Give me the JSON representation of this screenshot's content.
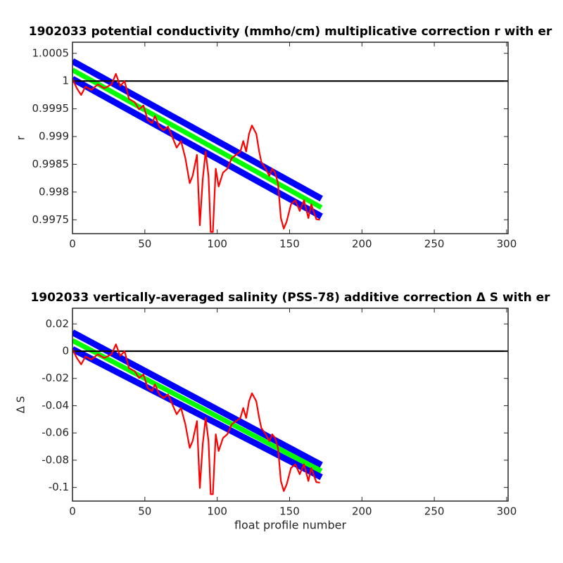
{
  "chart_data": [
    {
      "type": "line",
      "title": "1902033 potential conductivity (mmho/cm) multiplicative correction r with er",
      "ylabel": "r",
      "xlim": [
        0,
        301
      ],
      "xticks": [
        0,
        50,
        100,
        150,
        200,
        250,
        300
      ],
      "ylim": [
        0.99725,
        1.0007
      ],
      "yticks": [
        0.9975,
        0.998,
        0.9985,
        0.999,
        0.9995,
        1,
        1.0005
      ],
      "series": [
        {
          "color": "#0000ff",
          "style": "band",
          "x": [
            0,
            172
          ],
          "values": [
            1.00036,
            0.99788
          ]
        },
        {
          "color": "#0000ff",
          "style": "band",
          "x": [
            0,
            172
          ],
          "values": [
            1.00004,
            0.99756
          ]
        },
        {
          "color": "#00ff00",
          "style": "wide",
          "x": [
            0,
            172
          ],
          "values": [
            1.0002,
            0.99772
          ]
        },
        {
          "color": "#000000",
          "style": "thin",
          "x": [
            0,
            301
          ],
          "values": [
            1,
            1
          ]
        },
        {
          "color": "#ff0000",
          "style": "thin",
          "x": [
            0,
            3,
            6,
            9,
            13,
            17.5,
            22,
            27,
            30,
            33,
            36,
            39,
            43,
            46,
            49,
            52,
            55,
            57,
            60,
            63,
            66,
            69,
            72,
            75,
            78,
            81,
            83,
            86,
            88,
            90,
            92,
            94,
            95.5,
            97,
            99,
            101,
            104,
            107,
            110,
            113,
            116,
            118,
            120,
            122,
            124,
            127,
            129,
            130.5,
            133.5,
            136,
            138,
            140,
            142,
            144,
            146,
            148,
            151,
            154,
            157,
            160,
            163,
            165,
            166.5,
            168.5,
            171
          ],
          "values": [
            1.00004,
            0.99987,
            0.99975,
            0.9999,
            0.99984,
            0.99994,
            0.99987,
            0.99994,
            1.00013,
            0.99991,
            1,
            0.99968,
            0.99962,
            0.99949,
            0.99956,
            0.9993,
            0.99924,
            0.99937,
            0.99918,
            0.99911,
            0.99918,
            0.99899,
            0.9988,
            0.99892,
            0.99861,
            0.99816,
            0.99829,
            0.99867,
            0.9974,
            0.99823,
            0.99873,
            0.99829,
            0.99728,
            0.99728,
            0.99842,
            0.9981,
            0.99835,
            0.99842,
            0.99861,
            0.99867,
            0.99873,
            0.99892,
            0.99873,
            0.99905,
            0.9992,
            0.99905,
            0.99873,
            0.99854,
            0.99842,
            0.99829,
            0.99842,
            0.99835,
            0.99816,
            0.99753,
            0.99734,
            0.99747,
            0.99778,
            0.99785,
            0.99766,
            0.99785,
            0.99753,
            0.99778,
            0.99766,
            0.99751,
            0.9975
          ]
        }
      ]
    },
    {
      "type": "line",
      "title": "1902033 vertically-averaged salinity (PSS-78) additive correction Δ S with er",
      "ylabel": "Δ S",
      "xlabel": "float profile number",
      "xlim": [
        0,
        301
      ],
      "xticks": [
        0,
        50,
        100,
        150,
        200,
        250,
        300
      ],
      "ylim": [
        -0.11,
        0.0315
      ],
      "yticks": [
        -0.1,
        -0.08,
        -0.06,
        -0.04,
        -0.02,
        0,
        0.02
      ],
      "series": [
        {
          "color": "#0000ff",
          "style": "band",
          "x": [
            0,
            172
          ],
          "values": [
            0.0138,
            -0.0835
          ]
        },
        {
          "color": "#0000ff",
          "style": "band",
          "x": [
            0,
            172
          ],
          "values": [
            0.0015,
            -0.0925
          ]
        },
        {
          "color": "#00ff00",
          "style": "wide",
          "x": [
            0,
            172
          ],
          "values": [
            0.0078,
            -0.088
          ]
        },
        {
          "color": "#000000",
          "style": "thin",
          "x": [
            0,
            301
          ],
          "values": [
            0,
            0
          ]
        },
        {
          "color": "#ff0000",
          "style": "thin",
          "x": [
            0,
            3,
            6,
            9,
            13,
            17.5,
            22,
            27,
            30,
            33,
            36,
            39,
            43,
            46,
            49,
            52,
            55,
            57,
            60,
            63,
            66,
            69,
            72,
            75,
            78,
            81,
            83,
            86,
            88,
            90,
            92,
            94,
            95.5,
            97,
            99,
            101,
            104,
            107,
            110,
            113,
            116,
            118,
            120,
            122,
            124,
            127,
            129,
            130.5,
            133.5,
            136,
            138,
            140,
            142,
            144,
            146,
            148,
            151,
            154,
            157,
            160,
            163,
            165,
            166.5,
            168.5,
            171
          ],
          "values": [
            0.0015,
            -0.005,
            -0.0097,
            -0.0039,
            -0.0062,
            -0.0023,
            -0.005,
            -0.0023,
            0.005,
            -0.0035,
            0,
            -0.0124,
            -0.0147,
            -0.0197,
            -0.017,
            -0.027,
            -0.0293,
            -0.0243,
            -0.0317,
            -0.0344,
            -0.0317,
            -0.039,
            -0.0463,
            -0.0417,
            -0.0537,
            -0.071,
            -0.066,
            -0.0513,
            -0.1004,
            -0.0683,
            -0.049,
            -0.066,
            -0.105,
            -0.105,
            -0.061,
            -0.0733,
            -0.0637,
            -0.061,
            -0.0537,
            -0.0513,
            -0.049,
            -0.0417,
            -0.049,
            -0.0367,
            -0.0309,
            -0.0367,
            -0.049,
            -0.0564,
            -0.061,
            -0.066,
            -0.061,
            -0.0637,
            -0.071,
            -0.0953,
            -0.1027,
            -0.0977,
            -0.0857,
            -0.083,
            -0.0903,
            -0.083,
            -0.0953,
            -0.0857,
            -0.0903,
            -0.0961,
            -0.0965
          ]
        }
      ]
    }
  ]
}
